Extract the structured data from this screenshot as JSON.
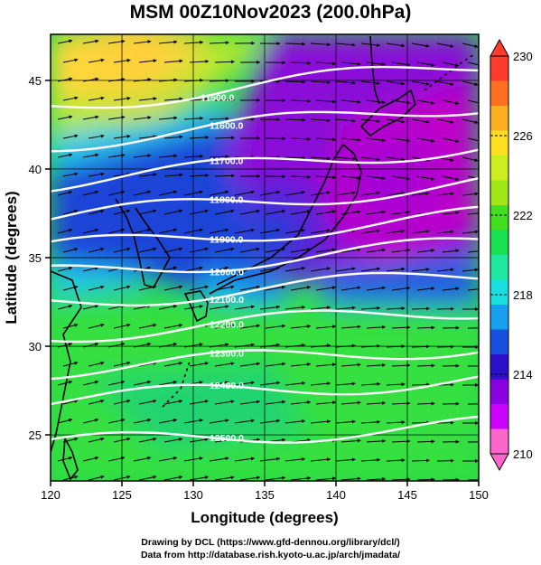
{
  "title": "MSM 00Z10Nov2023 (200.0hPa)",
  "axes": {
    "xlabel": "Longitude (degrees)",
    "ylabel": "Latitude  (degrees)",
    "x_ticks": [
      "120",
      "125",
      "130",
      "135",
      "140",
      "145",
      "150"
    ],
    "y_ticks": [
      "25",
      "30",
      "35",
      "40",
      "45"
    ],
    "xlim": [
      120,
      150
    ],
    "ylim": [
      22.4,
      47.6
    ]
  },
  "colorbar": {
    "ticks": [
      "210",
      "214",
      "218",
      "222",
      "226",
      "230"
    ],
    "range": [
      210,
      230
    ],
    "colors": [
      "#ff66cc",
      "#cc00ff",
      "#8a00e0",
      "#2a10c8",
      "#1850e0",
      "#18a0f0",
      "#18e0e0",
      "#20e8a0",
      "#18e050",
      "#40e020",
      "#a0e818",
      "#ccee20",
      "#ffe020",
      "#ffb020",
      "#ff7020",
      "#ff3b2b"
    ]
  },
  "contours": [
    {
      "label": "11500.0"
    },
    {
      "label": "11600.0"
    },
    {
      "label": "11700.0"
    },
    {
      "label": "11800.0"
    },
    {
      "label": "11900.0"
    },
    {
      "label": "12000.0"
    },
    {
      "label": "12100.0"
    },
    {
      "label": "12200.0"
    },
    {
      "label": "12300.0"
    },
    {
      "label": "12400.0"
    },
    {
      "label": "12500.0"
    }
  ],
  "credits": {
    "line1": "Drawing by DCL (https://www.gfd-dennou.org/library/dcl/)",
    "line2": "Data from http://database.rish.kyoto-u.ac.jp/arch/jmadata/"
  }
}
